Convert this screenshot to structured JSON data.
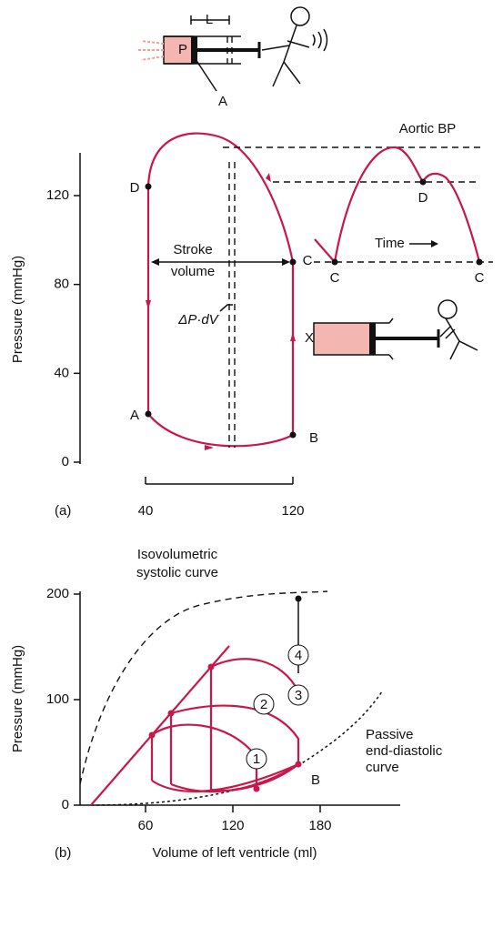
{
  "panel_a": {
    "label": "(a)",
    "y_axis_title": "Pressure (mmHg)",
    "yticks": [
      0,
      40,
      80,
      120
    ],
    "xticks": [
      40,
      120
    ],
    "points": {
      "A": "A",
      "B": "B",
      "C": "C",
      "D": "D"
    },
    "stroke_volume": [
      "Stroke",
      "volume"
    ],
    "work": "ΔP·dV",
    "aortic_title": "Aortic BP",
    "time": "Time",
    "aortic_points": [
      "C",
      "D",
      "C"
    ],
    "syringe_labels": {
      "L": "L",
      "P": "P",
      "A": "A",
      "X": "X"
    }
  },
  "panel_b": {
    "label": "(b)",
    "y_axis_title": "Pressure (mmHg)",
    "x_axis_title": "Volume of left ventricle (ml)",
    "yticks": [
      0,
      100,
      200
    ],
    "xticks": [
      60,
      120,
      180
    ],
    "systolic_curve": [
      "Isovolumetric",
      "systolic curve"
    ],
    "diastolic_curve": [
      "Passive",
      "end-diastolic",
      "curve"
    ],
    "point_b": "B",
    "loops": [
      "1",
      "2",
      "3",
      "4"
    ]
  }
}
